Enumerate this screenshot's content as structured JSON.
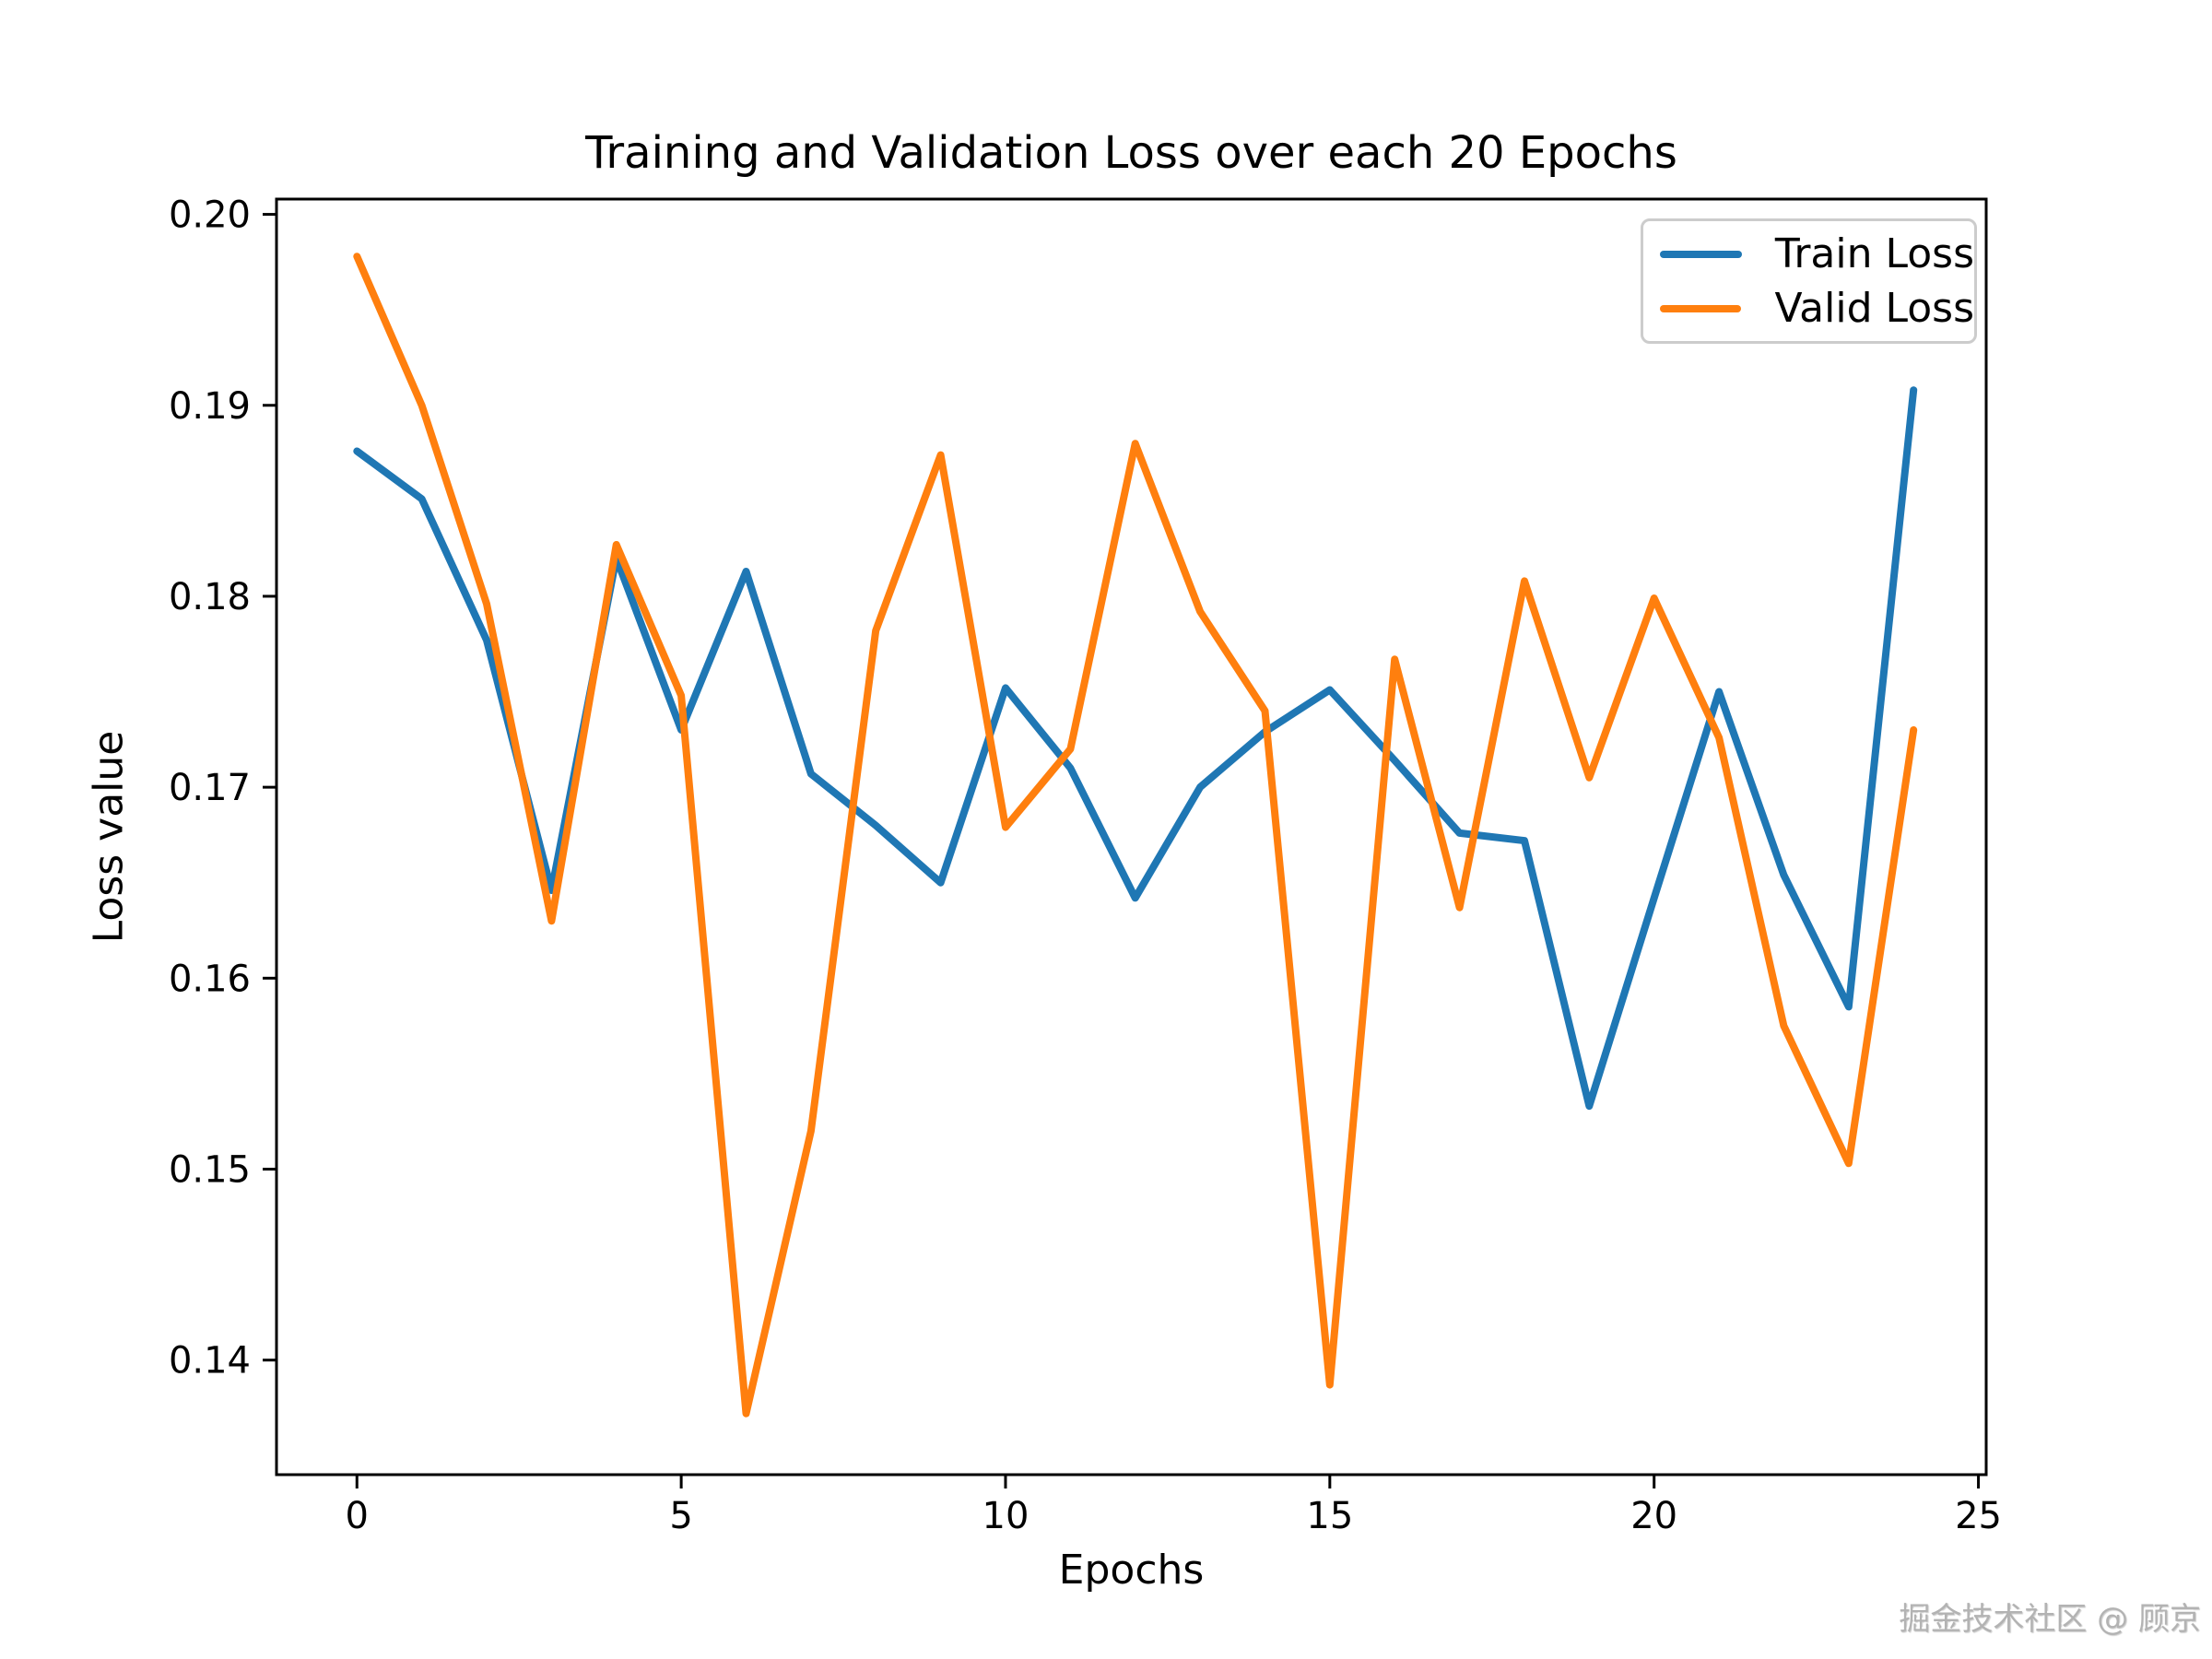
{
  "figure": {
    "watermark": "掘金技术社区 @ 顾京"
  },
  "chart_data": {
    "type": "line",
    "title": "Training and Validation Loss over each 20 Epochs",
    "xlabel": "Epochs",
    "ylabel": "Loss value",
    "x": [
      0,
      1,
      2,
      3,
      4,
      5,
      6,
      7,
      8,
      9,
      10,
      11,
      12,
      13,
      14,
      15,
      16,
      17,
      18,
      19,
      20,
      21,
      22,
      23,
      24
    ],
    "series": [
      {
        "name": "Train Loss",
        "color": "#1f77b4",
        "values": [
          0.1876,
          0.1851,
          0.1777,
          0.1646,
          0.182,
          0.173,
          0.1813,
          0.1707,
          0.168,
          0.165,
          0.1752,
          0.171,
          0.1642,
          0.17,
          0.1729,
          0.1751,
          0.1714,
          0.1676,
          0.1672,
          0.1533,
          0.1642,
          0.175,
          0.1654,
          0.1585,
          0.1908
        ]
      },
      {
        "name": "Valid Loss",
        "color": "#ff7f0e",
        "values": [
          0.1978,
          0.19,
          0.1796,
          0.163,
          0.1827,
          0.1748,
          0.1372,
          0.152,
          0.1782,
          0.1874,
          0.1679,
          0.172,
          0.188,
          0.1792,
          0.174,
          0.1387,
          0.1767,
          0.1637,
          0.1808,
          0.1705,
          0.1799,
          0.1726,
          0.1575,
          0.1503,
          0.173
        ]
      }
    ],
    "x_ticks": [
      0,
      5,
      10,
      15,
      20,
      25
    ],
    "y_ticks": [
      0.14,
      0.15,
      0.16,
      0.17,
      0.18,
      0.19,
      0.2
    ],
    "xlim": [
      -1.24,
      25.12
    ],
    "ylim": [
      0.134,
      0.2008
    ],
    "legend": {
      "position": "upper-right",
      "entries": [
        "Train Loss",
        "Valid Loss"
      ]
    },
    "grid": false
  }
}
